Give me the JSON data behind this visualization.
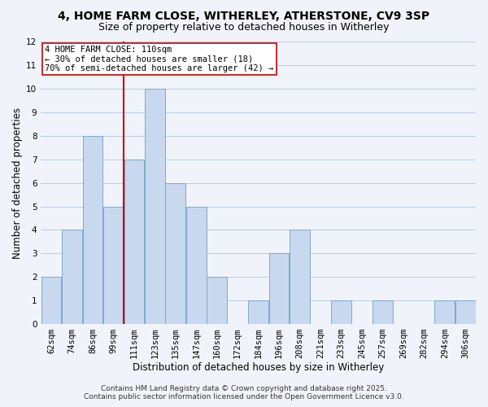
{
  "title": "4, HOME FARM CLOSE, WITHERLEY, ATHERSTONE, CV9 3SP",
  "subtitle": "Size of property relative to detached houses in Witherley",
  "xlabel": "Distribution of detached houses by size in Witherley",
  "ylabel": "Number of detached properties",
  "bin_labels": [
    "62sqm",
    "74sqm",
    "86sqm",
    "99sqm",
    "111sqm",
    "123sqm",
    "135sqm",
    "147sqm",
    "160sqm",
    "172sqm",
    "184sqm",
    "196sqm",
    "208sqm",
    "221sqm",
    "233sqm",
    "245sqm",
    "257sqm",
    "269sqm",
    "282sqm",
    "294sqm",
    "306sqm"
  ],
  "bin_counts": [
    2,
    4,
    8,
    5,
    7,
    10,
    6,
    5,
    2,
    0,
    1,
    3,
    4,
    0,
    1,
    0,
    1,
    0,
    0,
    1,
    1
  ],
  "bar_color": "#c8d8ee",
  "bar_edge_color": "#7aaad0",
  "vline_x_index": 4,
  "vline_color": "#cc0000",
  "ylim": [
    0,
    12
  ],
  "yticks": [
    0,
    1,
    2,
    3,
    4,
    5,
    6,
    7,
    8,
    9,
    10,
    11,
    12
  ],
  "annotation_title": "4 HOME FARM CLOSE: 110sqm",
  "annotation_line1": "← 30% of detached houses are smaller (18)",
  "annotation_line2": "70% of semi-detached houses are larger (42) →",
  "annotation_box_color": "#ffffff",
  "annotation_box_edge": "#cc0000",
  "footer1": "Contains HM Land Registry data © Crown copyright and database right 2025.",
  "footer2": "Contains public sector information licensed under the Open Government Licence v3.0.",
  "background_color": "#f0f4fa",
  "plot_bg_color": "#f0f4fa",
  "grid_color": "#b8cce4",
  "title_fontsize": 10,
  "subtitle_fontsize": 9,
  "axis_label_fontsize": 8.5,
  "tick_fontsize": 7.5,
  "annotation_fontsize": 7.5,
  "footer_fontsize": 6.5
}
